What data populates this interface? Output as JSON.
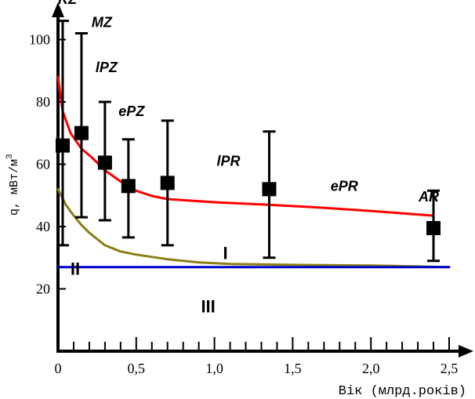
{
  "chart_data": {
    "type": "scatter",
    "xlabel": "Вік (млрд.років)",
    "ylabel": "q, мВт/м",
    "ylabel_superscript": "3",
    "xlim": [
      0,
      2.5
    ],
    "ylim": [
      0,
      110
    ],
    "x_ticks": [
      {
        "value": 0,
        "label": "0"
      },
      {
        "value": 0.5,
        "label": "0,5"
      },
      {
        "value": 1.0,
        "label": "1,0"
      },
      {
        "value": 1.5,
        "label": "1,5"
      },
      {
        "value": 2.0,
        "label": "2,0"
      },
      {
        "value": 2.5,
        "label": "2,5"
      }
    ],
    "x_minor_ticks": [
      0.1,
      0.2,
      0.3,
      0.4,
      0.6,
      0.7,
      0.8,
      0.9,
      1.1,
      1.2,
      1.3,
      1.4,
      1.6,
      1.7,
      1.8,
      1.9,
      2.1,
      2.2,
      2.3,
      2.4
    ],
    "y_ticks": [
      {
        "value": 20,
        "label": "20"
      },
      {
        "value": 40,
        "label": "40"
      },
      {
        "value": 60,
        "label": "60"
      },
      {
        "value": 80,
        "label": "80"
      },
      {
        "value": 100,
        "label": "100"
      }
    ],
    "points": [
      {
        "x": 0.03,
        "y": 66,
        "err_low": 34,
        "err_high": 106
      },
      {
        "x": 0.15,
        "y": 70,
        "err_low": 43,
        "err_high": 102
      },
      {
        "x": 0.3,
        "y": 60.5,
        "err_low": 42,
        "err_high": 80
      },
      {
        "x": 0.45,
        "y": 53,
        "err_low": 36.5,
        "err_high": 68
      },
      {
        "x": 0.7,
        "y": 54,
        "err_low": 34,
        "err_high": 74
      },
      {
        "x": 1.35,
        "y": 52,
        "err_low": 30,
        "err_high": 70.5
      },
      {
        "x": 2.4,
        "y": 39.5,
        "err_low": 29,
        "err_high": 51.5
      }
    ],
    "series": [
      {
        "color": "#ff0000",
        "x": [
          0.0,
          0.03,
          0.08,
          0.15,
          0.22,
          0.3,
          0.4,
          0.5,
          0.6,
          0.7,
          0.85,
          1.0,
          1.35,
          1.7,
          2.0,
          2.4
        ],
        "y": [
          88,
          77,
          70,
          65,
          62,
          58,
          54.5,
          51.5,
          49.8,
          48.8,
          48.3,
          47.8,
          47,
          46,
          45,
          43.5
        ]
      },
      {
        "color": "#8a7f14",
        "x": [
          0.0,
          0.05,
          0.1,
          0.15,
          0.2,
          0.3,
          0.4,
          0.5,
          0.7,
          0.9,
          1.1,
          1.5,
          2.0,
          2.5
        ],
        "y": [
          52,
          47,
          43.5,
          40.5,
          38,
          34,
          32,
          31,
          29.5,
          28.5,
          28,
          27.7,
          27.5,
          27
        ]
      },
      {
        "color": "#0000cc",
        "x": [
          0.0,
          2.5
        ],
        "y": [
          27,
          27
        ]
      }
    ],
    "annotations": [
      {
        "text": "KZ",
        "x": 0.06,
        "y": 111.5,
        "italic": true
      },
      {
        "text": "MZ",
        "x": 0.28,
        "y": 104,
        "italic": true
      },
      {
        "text": "lPZ",
        "x": 0.31,
        "y": 89.5,
        "italic": true
      },
      {
        "text": "ePZ",
        "x": 0.47,
        "y": 75.5,
        "italic": true
      },
      {
        "text": "lPR",
        "x": 1.09,
        "y": 59.5,
        "italic": true
      },
      {
        "text": "ePR",
        "x": 1.83,
        "y": 51.5,
        "italic": true
      },
      {
        "text": "AR",
        "x": 2.37,
        "y": 48,
        "italic": true
      },
      {
        "text": "I",
        "x": 1.07,
        "y": 29.5,
        "italic": false
      },
      {
        "text": "II",
        "x": 0.11,
        "y": 24.5,
        "italic": false
      },
      {
        "text": "III",
        "x": 0.96,
        "y": 12.5,
        "italic": false
      }
    ],
    "grid": false
  }
}
